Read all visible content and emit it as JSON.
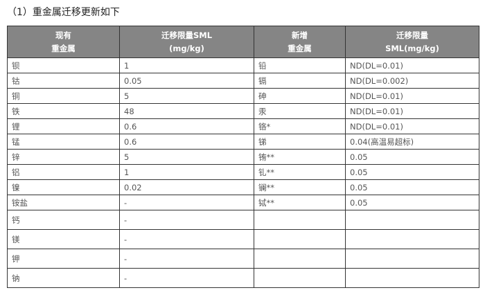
{
  "title": "（1）重金属迁移更新如下",
  "headers": [
    [
      "现有",
      "重金属"
    ],
    [
      "迁移限量SML",
      "(mg/kg)"
    ],
    [
      "新增",
      "重金属"
    ],
    [
      "迁移限量",
      "SML(mg/kg)"
    ]
  ],
  "rows": [
    [
      "钡",
      "1",
      "铅",
      "ND(DL=0.01)"
    ],
    [
      "钴",
      "0.05",
      "镉",
      "ND(DL=0.002)"
    ],
    [
      "铜",
      "5",
      "砷",
      "ND(DL=0.01)"
    ],
    [
      "铁",
      "48",
      "汞",
      "ND(DL=0.01)"
    ],
    [
      "锂",
      "0.6",
      "铬*",
      "ND(DL=0.01)"
    ],
    [
      "锰",
      "0.6",
      "锑",
      "0.04(高温易超标)"
    ],
    [
      "锌",
      "5",
      "铕**",
      "0.05"
    ],
    [
      "铝",
      "1",
      "钆**",
      "0.05"
    ],
    [
      "镍",
      "0.02",
      "镧**",
      "0.05"
    ],
    [
      "铵盐",
      "-",
      "铽**",
      "0.05"
    ],
    [
      "钙",
      "-",
      "",
      ""
    ],
    [
      "镁",
      "-",
      "",
      ""
    ],
    [
      "钾",
      "-",
      "",
      ""
    ],
    [
      "钠",
      "-",
      "",
      ""
    ]
  ]
}
